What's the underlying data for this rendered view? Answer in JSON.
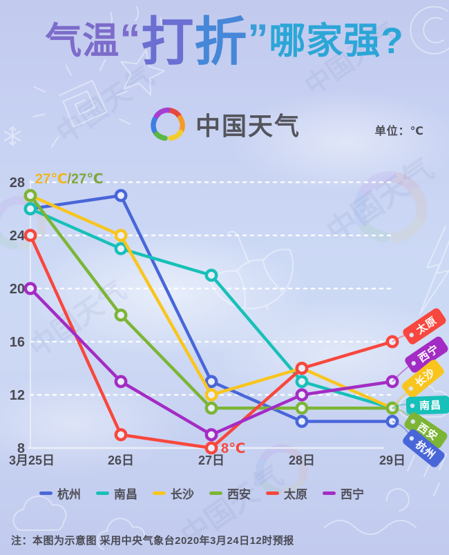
{
  "title": {
    "prefix": "气温",
    "open_quote": "“",
    "highlight_1": "打",
    "highlight_2": "折",
    "close_quote": "”",
    "suffix": "哪家强?"
  },
  "logo": {
    "text": "中国天气"
  },
  "unit_label": "单位：℃",
  "watermark": "中国天气",
  "chart_data": {
    "type": "line",
    "categories": [
      "3月25日",
      "26日",
      "27日",
      "28日",
      "29日"
    ],
    "xlabel": "",
    "ylabel": "℃",
    "ylim": [
      8,
      28
    ],
    "yticks": [
      8,
      12,
      16,
      20,
      24,
      28
    ],
    "grid": "horizontal-dotted-white",
    "legend_position": "bottom",
    "series": [
      {
        "name": "杭州",
        "color": "#4966d9",
        "values": [
          26,
          27,
          13,
          10,
          10
        ]
      },
      {
        "name": "南昌",
        "color": "#17c0b8",
        "values": [
          26,
          23,
          21,
          13,
          11
        ]
      },
      {
        "name": "长沙",
        "color": "#f9c51d",
        "values": [
          27,
          24,
          12,
          14,
          11
        ]
      },
      {
        "name": "西安",
        "color": "#7cb535",
        "values": [
          27,
          18,
          11,
          11,
          11
        ]
      },
      {
        "name": "太原",
        "color": "#f8473e",
        "values": [
          24,
          9,
          8,
          14,
          16
        ]
      },
      {
        "name": "西宁",
        "color": "#a32cc4",
        "values": [
          20,
          13,
          9,
          12,
          13
        ]
      }
    ],
    "annotations": [
      {
        "anchor": {
          "series": "西安",
          "category_index": 0
        },
        "parts": [
          {
            "text": "27℃",
            "color": "#f0b61c"
          },
          {
            "text": "/",
            "color": "#95a03e"
          },
          {
            "text": "27℃",
            "color": "#7fa43c"
          }
        ]
      },
      {
        "anchor": {
          "series": "太原",
          "category_index": 2
        },
        "parts": [
          {
            "text": "8℃",
            "color": "#f5473e"
          }
        ]
      }
    ]
  },
  "note": "注：本图为示意图 采用中央气象台2020年3月24日12时预报"
}
